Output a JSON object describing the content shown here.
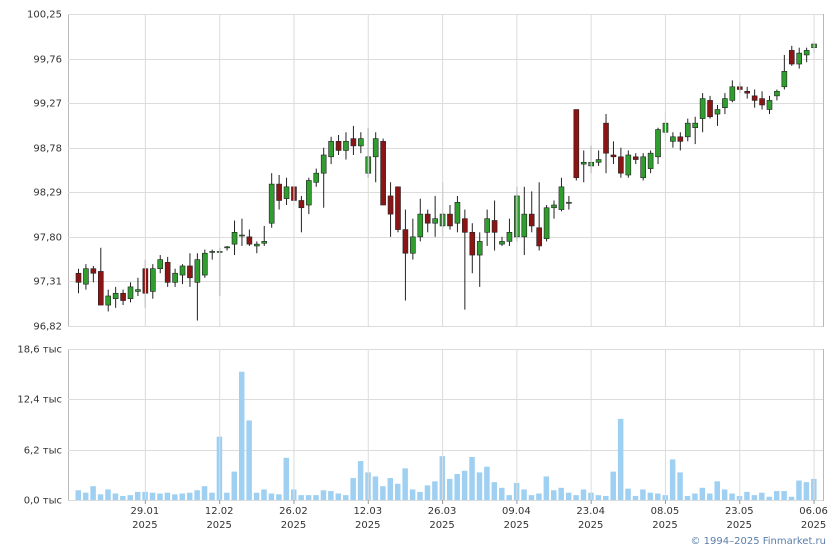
{
  "chart_data": [
    {
      "type": "candlestick",
      "ylim": [
        96.82,
        100.25
      ],
      "yticks": [
        {
          "value": 96.82,
          "label": "96,82"
        },
        {
          "value": 97.31,
          "label": "97,31"
        },
        {
          "value": 97.8,
          "label": "97,80"
        },
        {
          "value": 98.29,
          "label": "98,29"
        },
        {
          "value": 98.78,
          "label": "98,78"
        },
        {
          "value": 99.27,
          "label": "99,27"
        },
        {
          "value": 99.76,
          "label": "99,76"
        },
        {
          "value": 100.25,
          "label": "100,25"
        }
      ],
      "grid": true,
      "up_color": "#2f9e2f",
      "down_color": "#8b1414",
      "open": [
        97.4,
        97.28,
        97.45,
        97.42,
        97.05,
        97.12,
        97.18,
        97.12,
        97.2,
        97.45,
        97.2,
        97.45,
        97.52,
        97.3,
        97.38,
        97.48,
        97.3,
        97.38,
        97.64,
        97.64,
        97.68,
        97.72,
        97.82,
        97.8,
        97.7,
        97.73,
        97.95,
        98.38,
        98.22,
        98.35,
        98.2,
        98.15,
        98.4,
        98.5,
        98.68,
        98.85,
        98.75,
        98.88,
        98.8,
        98.5,
        98.68,
        98.85,
        98.25,
        98.35,
        97.88,
        97.62,
        97.8,
        98.05,
        97.95,
        97.92,
        98.05,
        97.95,
        98.0,
        97.85,
        97.6,
        97.85,
        97.98,
        97.72,
        97.75,
        97.8,
        97.8,
        98.05,
        97.9,
        97.78,
        98.12,
        98.1,
        98.18,
        99.2,
        98.6,
        98.58,
        98.62,
        99.05,
        98.7,
        98.68,
        98.48,
        98.68,
        98.45,
        98.55,
        98.68,
        98.95,
        98.85,
        98.9,
        98.9,
        99.0,
        99.1,
        99.3,
        99.15,
        99.22,
        99.3,
        99.45,
        99.4,
        99.35,
        99.32,
        99.2,
        99.35,
        99.45,
        99.85,
        99.7,
        99.8,
        99.88
      ],
      "high": [
        97.45,
        97.5,
        97.48,
        97.68,
        97.22,
        97.25,
        97.22,
        97.3,
        97.35,
        97.55,
        97.5,
        97.6,
        97.58,
        97.45,
        97.5,
        97.62,
        97.62,
        97.66,
        97.66,
        97.68,
        97.7,
        97.98,
        98.0,
        97.88,
        97.75,
        97.92,
        98.5,
        98.48,
        98.45,
        98.4,
        98.25,
        98.45,
        98.55,
        98.78,
        98.9,
        98.92,
        98.95,
        99.02,
        98.95,
        99.0,
        98.95,
        98.88,
        98.4,
        98.35,
        98.1,
        98.0,
        98.22,
        98.1,
        98.25,
        98.4,
        98.15,
        98.25,
        98.1,
        97.95,
        97.85,
        98.1,
        98.2,
        97.8,
        98.0,
        98.35,
        98.35,
        98.3,
        98.4,
        98.15,
        98.2,
        98.45,
        98.25,
        99.2,
        98.75,
        98.8,
        98.75,
        99.15,
        98.85,
        98.78,
        98.75,
        98.72,
        98.72,
        98.75,
        99.0,
        99.18,
        98.95,
        98.95,
        99.1,
        99.12,
        99.38,
        99.35,
        99.25,
        99.38,
        99.52,
        99.5,
        99.45,
        99.42,
        99.4,
        99.35,
        99.42,
        99.8,
        99.9,
        99.88,
        99.88,
        99.95
      ],
      "low": [
        97.18,
        97.22,
        97.3,
        97.05,
        96.98,
        97.02,
        97.05,
        97.08,
        97.15,
        97.02,
        97.12,
        97.4,
        97.25,
        97.25,
        97.28,
        97.25,
        96.88,
        97.35,
        97.55,
        97.15,
        97.65,
        97.6,
        97.7,
        97.7,
        97.62,
        97.7,
        97.9,
        98.1,
        98.15,
        98.15,
        97.85,
        98.05,
        98.35,
        98.12,
        98.6,
        98.7,
        98.65,
        98.7,
        98.72,
        98.45,
        98.4,
        98.15,
        97.8,
        97.85,
        97.1,
        97.55,
        97.75,
        97.85,
        97.8,
        97.8,
        97.88,
        97.85,
        97.0,
        97.4,
        97.25,
        97.7,
        97.65,
        97.7,
        97.7,
        97.75,
        97.6,
        97.85,
        97.65,
        97.75,
        98.0,
        98.08,
        98.1,
        98.42,
        98.4,
        98.5,
        98.58,
        98.5,
        98.6,
        98.45,
        98.45,
        98.6,
        98.42,
        98.5,
        98.6,
        98.85,
        98.78,
        98.75,
        98.85,
        98.82,
        98.95,
        99.1,
        99.02,
        99.15,
        99.28,
        99.38,
        99.32,
        99.22,
        99.2,
        99.15,
        99.3,
        99.42,
        99.68,
        99.65,
        99.72,
        99.82
      ],
      "close": [
        97.3,
        97.45,
        97.4,
        97.05,
        97.15,
        97.18,
        97.1,
        97.25,
        97.22,
        97.18,
        97.45,
        97.55,
        97.3,
        97.4,
        97.48,
        97.35,
        97.55,
        97.62,
        97.64,
        97.64,
        97.69,
        97.85,
        97.82,
        97.72,
        97.72,
        97.75,
        98.38,
        98.2,
        98.35,
        98.2,
        98.12,
        98.42,
        98.5,
        98.7,
        98.85,
        98.75,
        98.85,
        98.8,
        98.88,
        98.68,
        98.88,
        98.15,
        98.05,
        97.88,
        97.62,
        97.8,
        98.05,
        97.95,
        98.0,
        98.05,
        97.92,
        98.18,
        97.85,
        97.6,
        97.75,
        98.0,
        97.85,
        97.75,
        97.85,
        98.25,
        98.05,
        97.92,
        97.7,
        98.12,
        98.15,
        98.35,
        98.18,
        98.45,
        98.62,
        98.62,
        98.65,
        98.72,
        98.68,
        98.5,
        98.7,
        98.65,
        98.68,
        98.72,
        98.98,
        99.05,
        98.9,
        98.85,
        99.05,
        99.05,
        99.32,
        99.12,
        99.2,
        99.32,
        99.45,
        99.42,
        99.38,
        99.3,
        99.25,
        99.3,
        99.4,
        99.62,
        99.7,
        99.82,
        99.85,
        99.92
      ]
    },
    {
      "type": "bar",
      "ylim": [
        0,
        18.6
      ],
      "yticks": [
        {
          "value": 0,
          "label": "0,0 тыс"
        },
        {
          "value": 6.2,
          "label": "6,2 тыс"
        },
        {
          "value": 12.4,
          "label": "12,4 тыс"
        },
        {
          "value": 18.6,
          "label": "18,6 тыс"
        }
      ],
      "grid": true,
      "color": "#9fd0f2",
      "categories": [
        null,
        null,
        null,
        null,
        null,
        null,
        null,
        null,
        null,
        "29.01",
        null,
        null,
        null,
        null,
        null,
        null,
        null,
        null,
        null,
        "12.02",
        null,
        null,
        null,
        null,
        null,
        null,
        null,
        null,
        null,
        "26.02",
        null,
        null,
        null,
        null,
        null,
        null,
        null,
        null,
        null,
        "12.03",
        null,
        null,
        null,
        null,
        null,
        null,
        null,
        null,
        null,
        "26.03",
        null,
        null,
        null,
        null,
        null,
        null,
        null,
        null,
        null,
        "09.04",
        null,
        null,
        null,
        null,
        null,
        null,
        null,
        null,
        null,
        "23.04",
        null,
        null,
        null,
        null,
        null,
        null,
        null,
        null,
        null,
        "08.05",
        null,
        null,
        null,
        null,
        null,
        null,
        null,
        null,
        null,
        "23.05",
        null,
        null,
        null,
        null,
        null,
        null,
        null,
        null,
        null,
        "06.06"
      ],
      "year_label": "2025",
      "values": [
        1.2,
        0.9,
        1.7,
        0.7,
        1.3,
        0.8,
        0.5,
        0.6,
        1.0,
        1.0,
        0.9,
        0.8,
        0.9,
        0.7,
        0.8,
        0.9,
        1.2,
        1.7,
        0.9,
        7.8,
        0.9,
        3.5,
        15.8,
        9.8,
        0.9,
        1.3,
        0.8,
        0.7,
        5.2,
        1.3,
        0.6,
        0.6,
        0.6,
        1.2,
        1.1,
        0.8,
        0.6,
        2.7,
        4.8,
        3.4,
        2.9,
        1.7,
        2.7,
        2.0,
        3.9,
        1.3,
        1.0,
        1.8,
        2.3,
        5.4,
        2.6,
        3.2,
        3.6,
        5.3,
        3.4,
        4.1,
        2.2,
        1.5,
        0.6,
        2.1,
        1.3,
        0.6,
        0.8,
        2.9,
        1.2,
        1.5,
        0.9,
        0.6,
        1.3,
        0.9,
        0.6,
        0.5,
        3.5,
        10.0,
        1.4,
        0.5,
        1.3,
        0.9,
        0.8,
        0.6,
        5.0,
        3.4,
        0.5,
        0.8,
        1.5,
        0.8,
        2.3,
        1.3,
        0.8,
        0.5,
        1.0,
        0.6,
        0.9,
        0.4,
        1.1,
        1.1,
        0.4,
        2.4,
        2.2,
        2.6
      ],
      "source": "© 1994–2025 Finmarket.ru"
    }
  ]
}
